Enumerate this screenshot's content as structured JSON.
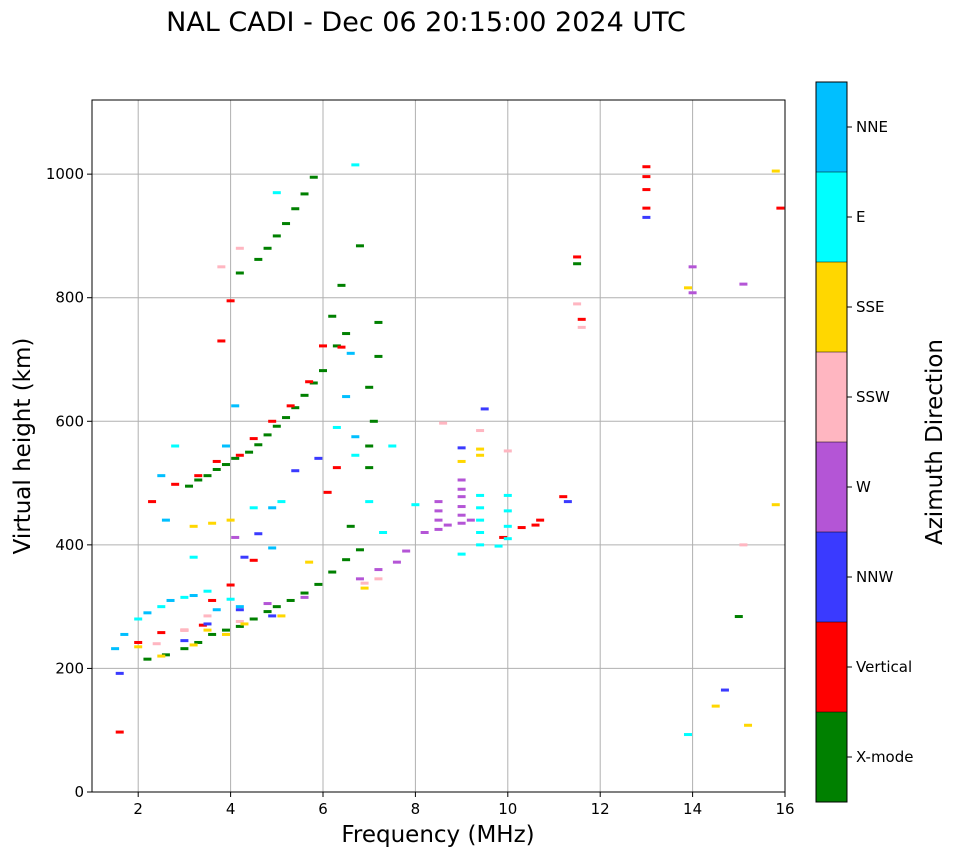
{
  "chart_data": {
    "type": "scatter",
    "title": "NAL CADI - Dec 06 20:15:00 2024 UTC",
    "xlabel": "Frequency (MHz)",
    "ylabel": "Virtual height (km)",
    "xlim": [
      1,
      16
    ],
    "ylim": [
      0,
      1120
    ],
    "xticks": [
      2,
      4,
      6,
      8,
      10,
      12,
      14,
      16
    ],
    "yticks": [
      0,
      200,
      400,
      600,
      800,
      1000
    ],
    "grid": true,
    "colorbar": {
      "label": "Azimuth Direction",
      "categories": [
        "X-mode",
        "Vertical",
        "NNW",
        "W",
        "SSW",
        "SSE",
        "E",
        "NNE"
      ],
      "colors": [
        "#008000",
        "#ff0000",
        "#3a3aff",
        "#b455d6",
        "#ffb6c1",
        "#ffd700",
        "#00ffff",
        "#00bfff"
      ]
    },
    "series": [
      {
        "name": "X-mode",
        "points": [
          [
            2.2,
            215
          ],
          [
            2.6,
            222
          ],
          [
            3.0,
            232
          ],
          [
            3.3,
            242
          ],
          [
            3.6,
            255
          ],
          [
            3.9,
            262
          ],
          [
            4.2,
            268
          ],
          [
            4.5,
            280
          ],
          [
            4.8,
            292
          ],
          [
            5.0,
            300
          ],
          [
            5.3,
            310
          ],
          [
            5.6,
            322
          ],
          [
            5.9,
            336
          ],
          [
            6.2,
            356
          ],
          [
            6.5,
            376
          ],
          [
            6.8,
            392
          ],
          [
            3.1,
            495
          ],
          [
            3.3,
            505
          ],
          [
            3.5,
            512
          ],
          [
            3.7,
            522
          ],
          [
            3.9,
            530
          ],
          [
            4.1,
            540
          ],
          [
            4.4,
            550
          ],
          [
            4.6,
            562
          ],
          [
            4.8,
            578
          ],
          [
            5.0,
            592
          ],
          [
            5.2,
            606
          ],
          [
            5.4,
            622
          ],
          [
            5.6,
            642
          ],
          [
            5.8,
            662
          ],
          [
            6.0,
            682
          ],
          [
            6.3,
            722
          ],
          [
            6.5,
            742
          ],
          [
            4.2,
            840
          ],
          [
            4.6,
            862
          ],
          [
            4.8,
            880
          ],
          [
            5.0,
            900
          ],
          [
            5.2,
            920
          ],
          [
            5.4,
            944
          ],
          [
            5.6,
            968
          ],
          [
            5.8,
            995
          ],
          [
            6.2,
            770
          ],
          [
            6.4,
            820
          ],
          [
            6.8,
            884
          ],
          [
            7.2,
            760
          ],
          [
            7.2,
            705
          ],
          [
            7.0,
            655
          ],
          [
            7.1,
            600
          ],
          [
            7.0,
            560
          ],
          [
            7.0,
            525
          ],
          [
            6.6,
            430
          ],
          [
            15.0,
            284
          ],
          [
            11.5,
            855
          ]
        ]
      },
      {
        "name": "Vertical",
        "points": [
          [
            1.6,
            97
          ],
          [
            2.0,
            242
          ],
          [
            2.5,
            258
          ],
          [
            3.0,
            262
          ],
          [
            3.4,
            270
          ],
          [
            2.3,
            470
          ],
          [
            2.8,
            498
          ],
          [
            3.3,
            512
          ],
          [
            3.7,
            535
          ],
          [
            4.2,
            545
          ],
          [
            4.5,
            572
          ],
          [
            4.9,
            600
          ],
          [
            5.3,
            625
          ],
          [
            5.7,
            664
          ],
          [
            6.0,
            722
          ],
          [
            6.4,
            720
          ],
          [
            6.3,
            525
          ],
          [
            6.1,
            485
          ],
          [
            9.9,
            412
          ],
          [
            10.3,
            428
          ],
          [
            10.6,
            432
          ],
          [
            10.7,
            440
          ],
          [
            11.2,
            478
          ],
          [
            13.0,
            1012
          ],
          [
            13.0,
            996
          ],
          [
            13.0,
            975
          ],
          [
            13.0,
            945
          ],
          [
            15.9,
            945
          ],
          [
            11.5,
            866
          ],
          [
            11.6,
            765
          ],
          [
            4.0,
            795
          ],
          [
            3.8,
            730
          ],
          [
            4.5,
            375
          ],
          [
            4.0,
            335
          ],
          [
            3.6,
            310
          ]
        ]
      },
      {
        "name": "NNW",
        "points": [
          [
            1.6,
            192
          ],
          [
            3.0,
            245
          ],
          [
            3.5,
            272
          ],
          [
            4.2,
            295
          ],
          [
            4.9,
            285
          ],
          [
            5.4,
            520
          ],
          [
            5.9,
            540
          ],
          [
            9.0,
            557
          ],
          [
            9.5,
            620
          ],
          [
            13.0,
            930
          ],
          [
            14.7,
            165
          ],
          [
            11.3,
            470
          ],
          [
            4.6,
            418
          ],
          [
            4.3,
            380
          ]
        ]
      },
      {
        "name": "W",
        "points": [
          [
            8.5,
            470
          ],
          [
            8.5,
            455
          ],
          [
            8.5,
            440
          ],
          [
            8.5,
            425
          ],
          [
            8.2,
            420
          ],
          [
            9.0,
            505
          ],
          [
            9.0,
            490
          ],
          [
            9.0,
            478
          ],
          [
            9.0,
            462
          ],
          [
            9.0,
            448
          ],
          [
            9.0,
            435
          ],
          [
            8.7,
            432
          ],
          [
            9.2,
            440
          ],
          [
            7.8,
            390
          ],
          [
            7.6,
            372
          ],
          [
            7.2,
            360
          ],
          [
            6.8,
            345
          ],
          [
            14.0,
            850
          ],
          [
            14.0,
            808
          ],
          [
            15.1,
            822
          ],
          [
            4.1,
            412
          ],
          [
            4.8,
            305
          ],
          [
            5.6,
            315
          ]
        ]
      },
      {
        "name": "SSW",
        "points": [
          [
            2.4,
            240
          ],
          [
            3.0,
            262
          ],
          [
            3.5,
            285
          ],
          [
            4.2,
            276
          ],
          [
            6.9,
            338
          ],
          [
            7.2,
            345
          ],
          [
            9.4,
            585
          ],
          [
            8.6,
            597
          ],
          [
            10.0,
            552
          ],
          [
            11.5,
            790
          ],
          [
            11.6,
            752
          ],
          [
            15.1,
            400
          ],
          [
            3.8,
            850
          ],
          [
            4.2,
            880
          ]
        ]
      },
      {
        "name": "SSE",
        "points": [
          [
            2.0,
            235
          ],
          [
            2.5,
            220
          ],
          [
            3.2,
            238
          ],
          [
            3.5,
            262
          ],
          [
            3.9,
            255
          ],
          [
            4.3,
            272
          ],
          [
            5.1,
            285
          ],
          [
            5.7,
            372
          ],
          [
            9.4,
            555
          ],
          [
            9.4,
            545
          ],
          [
            9.0,
            535
          ],
          [
            13.9,
            816
          ],
          [
            14.5,
            139
          ],
          [
            15.2,
            108
          ],
          [
            15.8,
            1005
          ],
          [
            15.8,
            465
          ],
          [
            3.2,
            430
          ],
          [
            3.6,
            435
          ],
          [
            4.0,
            440
          ],
          [
            6.9,
            330
          ]
        ]
      },
      {
        "name": "E",
        "points": [
          [
            2.0,
            280
          ],
          [
            2.5,
            300
          ],
          [
            3.0,
            315
          ],
          [
            3.5,
            325
          ],
          [
            4.0,
            312
          ],
          [
            9.4,
            480
          ],
          [
            9.4,
            460
          ],
          [
            9.4,
            440
          ],
          [
            9.4,
            420
          ],
          [
            9.4,
            400
          ],
          [
            9.0,
            385
          ],
          [
            9.8,
            398
          ],
          [
            10.0,
            480
          ],
          [
            10.0,
            455
          ],
          [
            10.0,
            430
          ],
          [
            10.0,
            410
          ],
          [
            13.9,
            93
          ],
          [
            6.3,
            590
          ],
          [
            6.7,
            545
          ],
          [
            7.3,
            420
          ],
          [
            7.0,
            470
          ],
          [
            7.5,
            560
          ],
          [
            8.0,
            465
          ],
          [
            4.5,
            460
          ],
          [
            5.1,
            470
          ],
          [
            2.8,
            560
          ],
          [
            3.2,
            380
          ],
          [
            5.0,
            970
          ],
          [
            6.7,
            1015
          ]
        ]
      },
      {
        "name": "NNE",
        "points": [
          [
            1.5,
            232
          ],
          [
            1.7,
            255
          ],
          [
            2.2,
            290
          ],
          [
            2.7,
            310
          ],
          [
            3.2,
            318
          ],
          [
            3.7,
            295
          ],
          [
            4.2,
            300
          ],
          [
            4.9,
            460
          ],
          [
            6.7,
            575
          ],
          [
            6.5,
            640
          ],
          [
            6.6,
            710
          ],
          [
            4.1,
            625
          ],
          [
            3.9,
            560
          ],
          [
            2.5,
            512
          ],
          [
            4.9,
            395
          ],
          [
            2.6,
            440
          ]
        ]
      }
    ]
  }
}
